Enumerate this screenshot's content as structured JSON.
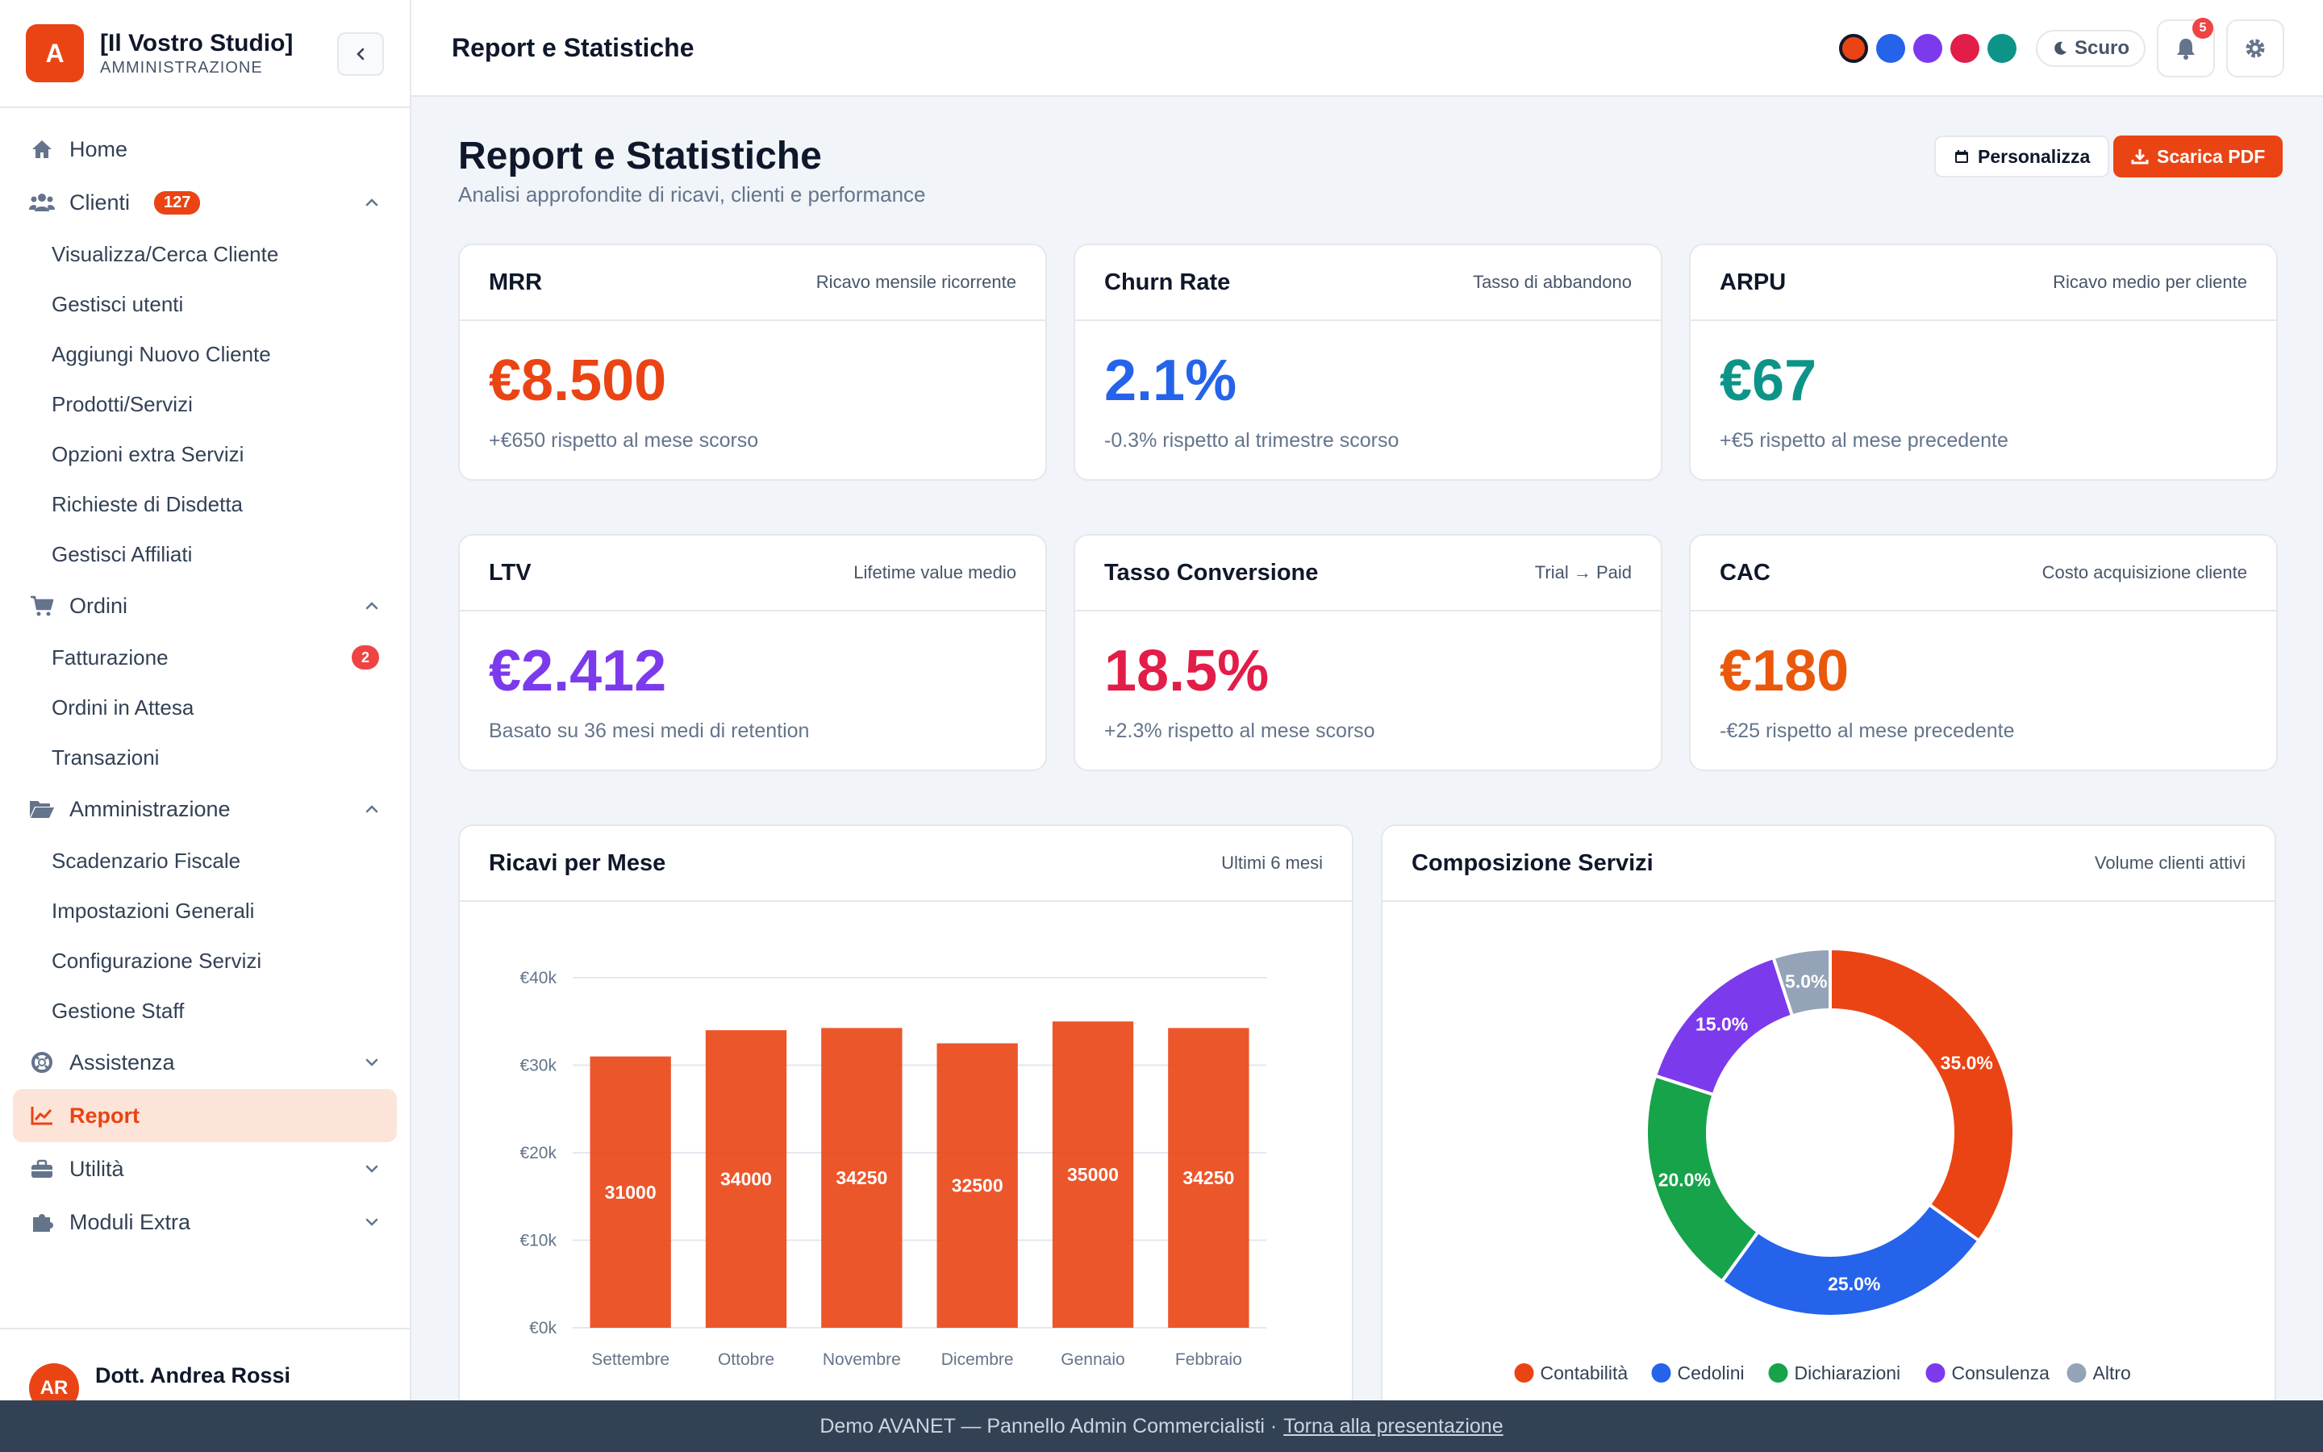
{
  "brand": {
    "logo_letter": "A",
    "name": "[Il Vostro Studio]",
    "sub": "AMMINISTRAZIONE"
  },
  "sidebar": {
    "home": "Home",
    "clienti": "Clienti",
    "clienti_badge": "127",
    "clienti_items": [
      "Visualizza/Cerca Cliente",
      "Gestisci utenti",
      "Aggiungi Nuovo Cliente",
      "Prodotti/Servizi",
      "Opzioni extra Servizi",
      "Richieste di Disdetta",
      "Gestisci Affiliati"
    ],
    "ordini": "Ordini",
    "fatturazione": "Fatturazione",
    "fatturazione_badge": "2",
    "ordini_attesa": "Ordini in Attesa",
    "transazioni": "Transazioni",
    "amministrazione": "Amministrazione",
    "amm_items": [
      "Scadenzario Fiscale",
      "Impostazioni Generali",
      "Configurazione Servizi",
      "Gestione Staff"
    ],
    "assistenza": "Assistenza",
    "report": "Report",
    "utilita": "Utilità",
    "moduli": "Moduli Extra"
  },
  "user": {
    "initials": "AR",
    "name": "Dott. Andrea Rossi"
  },
  "header": {
    "title": "Report e Statistiche",
    "theme_label": "Scuro",
    "notif_count": "5",
    "swatches": [
      "#ea4414",
      "#2563eb",
      "#7c3aed",
      "#e11d48",
      "#0d9488"
    ]
  },
  "page": {
    "title": "Report e Statistiche",
    "subtitle": "Analisi approfondite di ricavi, clienti e performance",
    "btn_custom": "Personalizza",
    "btn_pdf": "Scarica PDF"
  },
  "kpis": [
    {
      "title": "MRR",
      "hint": "Ricavo mensile ricorrente",
      "value": "€8.500",
      "note": "+€650 rispetto al mese scorso",
      "color": "#ea4414"
    },
    {
      "title": "Churn Rate",
      "hint": "Tasso di abbandono",
      "value": "2.1%",
      "note": "-0.3% rispetto al trimestre scorso",
      "color": "#2563eb"
    },
    {
      "title": "ARPU",
      "hint": "Ricavo medio per cliente",
      "value": "€67",
      "note": "+€5 rispetto al mese precedente",
      "color": "#0d9488"
    },
    {
      "title": "LTV",
      "hint": "Lifetime value medio",
      "value": "€2.412",
      "note": "Basato su 36 mesi medi di retention",
      "color": "#7c3aed"
    },
    {
      "title": "Tasso Conversione",
      "hint": "Trial → Paid",
      "value": "18.5%",
      "note": "+2.3% rispetto al mese scorso",
      "color": "#e11d48"
    },
    {
      "title": "CAC",
      "hint": "Costo acquisizione cliente",
      "value": "€180",
      "note": "-€25 rispetto al mese precedente",
      "color": "#ea580c"
    }
  ],
  "revenue_panel": {
    "title": "Ricavi per Mese",
    "hint": "Ultimi 6 mesi"
  },
  "services_panel": {
    "title": "Composizione Servizi",
    "hint": "Volume clienti attivi"
  },
  "footer": {
    "text": "Demo AVANET — Pannello Admin Commercialisti ·",
    "link": "Torna alla presentazione"
  },
  "chart_data": [
    {
      "type": "bar",
      "categories": [
        "Settembre",
        "Ottobre",
        "Novembre",
        "Dicembre",
        "Gennaio",
        "Febbraio"
      ],
      "values": [
        31000,
        34000,
        34250,
        32500,
        35000,
        34250
      ],
      "data_labels": [
        "31000",
        "34000",
        "34250",
        "32500",
        "35000",
        "34250"
      ],
      "ylim": [
        0,
        40000
      ],
      "yticks": [
        0,
        10000,
        20000,
        30000,
        40000
      ],
      "ytick_labels": [
        "€0k",
        "€10k",
        "€20k",
        "€30k",
        "€40k"
      ],
      "grid": true,
      "color": "#ea4414"
    },
    {
      "type": "pie",
      "donut": true,
      "labels": [
        "Contabilità",
        "Cedolini",
        "Dichiarazioni",
        "Consulenza",
        "Altro"
      ],
      "values": [
        35,
        25,
        20,
        15,
        5
      ],
      "data_labels": [
        "35.0%",
        "25.0%",
        "20.0%",
        "15.0%",
        "5.0%"
      ],
      "colors": [
        "#ea4414",
        "#2563eb",
        "#16a34a",
        "#7c3aed",
        "#94a3b8"
      ],
      "legend": "bottom"
    }
  ]
}
